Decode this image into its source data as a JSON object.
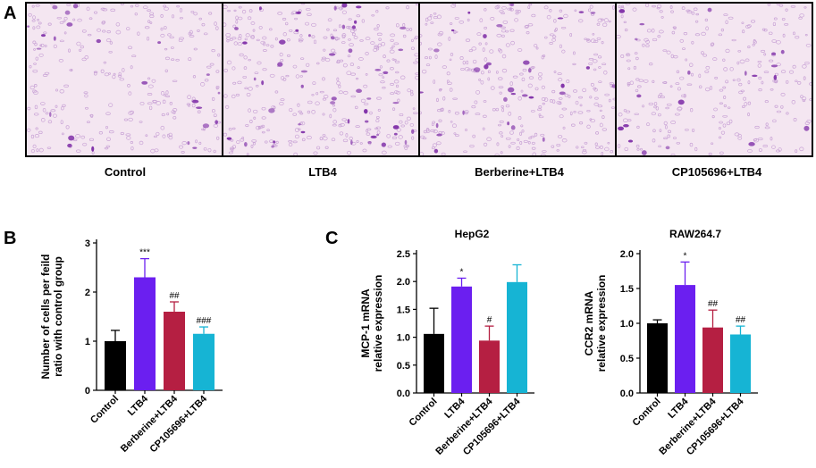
{
  "panels": {
    "a": "A",
    "b": "B",
    "c": "C"
  },
  "micrographs": [
    {
      "label": "Control",
      "density": 1.0,
      "purple": 0.25
    },
    {
      "label": "LTB4",
      "density": 1.3,
      "purple": 0.55
    },
    {
      "label": "Berberine+LTB4",
      "density": 1.25,
      "purple": 0.35
    },
    {
      "label": "CP105696+LTB4",
      "density": 1.05,
      "purple": 0.22
    }
  ],
  "colors": {
    "black": "#000000",
    "purple": "#6b1ff0",
    "crimson": "#b51f42",
    "cyan": "#16b4d4",
    "tissue_bg": "#f4e6f1",
    "cell_dark": "#7c2aa6",
    "cell_light": "#c9a3d6"
  },
  "chart_data": [
    {
      "id": "B",
      "type": "bar",
      "title": "",
      "ylabel": "Number of cells per feild ratio with control group",
      "ylabel_lines": [
        "Number of cells per feild",
        "ratio with control group"
      ],
      "categories": [
        "Control",
        "LTB4",
        "Berberine+LTB4",
        "CP105696+LTB4"
      ],
      "values": [
        1.0,
        2.3,
        1.6,
        1.15
      ],
      "errors": [
        0.22,
        0.38,
        0.2,
        0.14
      ],
      "annotations": [
        "",
        "***",
        "##",
        "###"
      ],
      "ylim": [
        0,
        3
      ],
      "yticks": [
        0,
        1,
        2,
        3
      ],
      "ytick_labels": [
        "0",
        "1",
        "2",
        "3"
      ]
    },
    {
      "id": "C1",
      "type": "bar",
      "title": "HepG2",
      "ylabel": "MCP-1 mRNA relative expression",
      "ylabel_lines": [
        "MCP-1 mRNA",
        "relative expression"
      ],
      "categories": [
        "Control",
        "LTB4",
        "Berberine+LTB4",
        "CP105696+LTB4"
      ],
      "values": [
        1.06,
        1.91,
        0.94,
        1.99
      ],
      "errors": [
        0.46,
        0.15,
        0.26,
        0.31
      ],
      "annotations": [
        "",
        "*",
        "#",
        ""
      ],
      "ylim": [
        0,
        2.5
      ],
      "yticks": [
        0,
        0.5,
        1.0,
        1.5,
        2.0,
        2.5
      ],
      "ytick_labels": [
        "0.0",
        "0.5",
        "1.0",
        "1.5",
        "2.0",
        "2.5"
      ]
    },
    {
      "id": "C2",
      "type": "bar",
      "title": "RAW264.7",
      "ylabel": "CCR2 mRNA relative expression",
      "ylabel_lines": [
        "CCR2 mRNA",
        "relative expression"
      ],
      "categories": [
        "Control",
        "LTB4",
        "Berberine+LTB4",
        "CP105696+LTB4"
      ],
      "values": [
        1.0,
        1.55,
        0.94,
        0.84
      ],
      "errors": [
        0.05,
        0.33,
        0.25,
        0.12
      ],
      "annotations": [
        "",
        "*",
        "##",
        "##"
      ],
      "ylim": [
        0,
        2.0
      ],
      "yticks": [
        0,
        0.5,
        1.0,
        1.5,
        2.0
      ],
      "ytick_labels": [
        "0.0",
        "0.5",
        "1.0",
        "1.5",
        "2.0"
      ]
    }
  ]
}
